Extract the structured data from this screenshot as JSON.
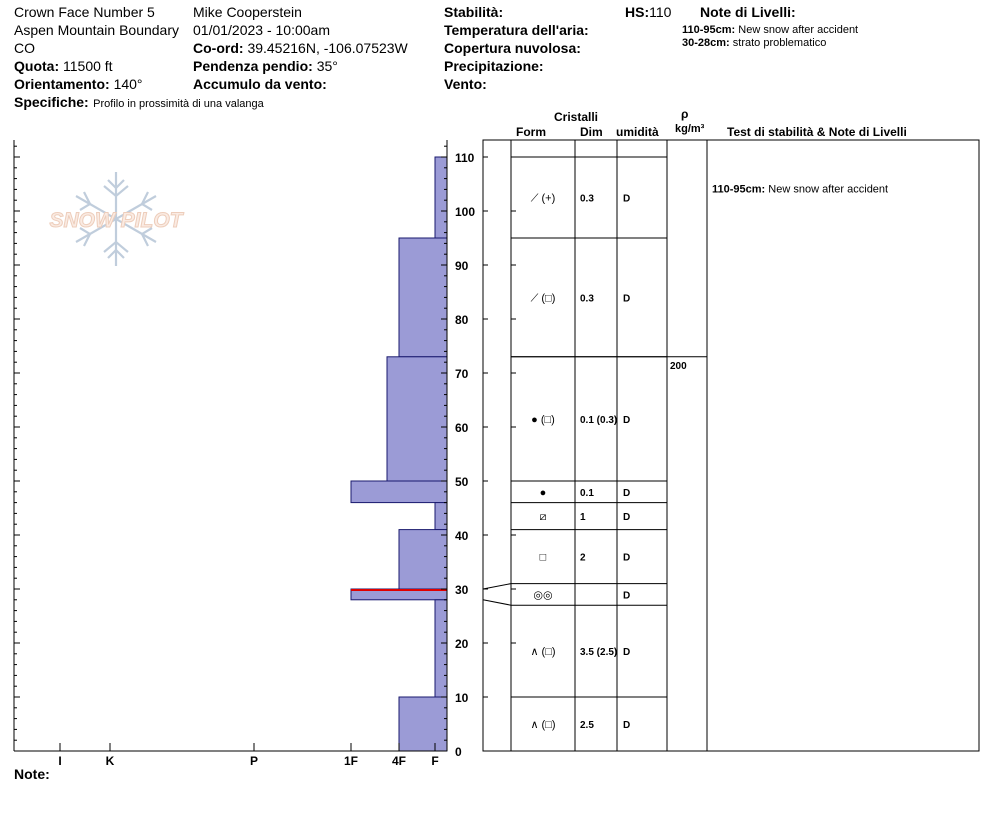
{
  "header": {
    "site": "Crown Face Number 5",
    "location": "Aspen Mountain Boundary",
    "state": "CO",
    "elevation_label": "Quota:",
    "elevation_value": "11500 ft",
    "aspect_label": "Orientamento:",
    "aspect_value": "140°",
    "specifics_label": "Specifiche:",
    "specifics_value": "Profilo in prossimità di una valanga",
    "observer": "Mike Cooperstein",
    "datetime": "01/01/2023 - 10:00am",
    "coord_label": "Co-ord:",
    "coord_value": "39.45216N, -106.07523W",
    "slope_label": "Pendenza pendio:",
    "slope_value": "35°",
    "wind_loading_label": "Accumulo da vento:",
    "stability_label": "Stabilità:",
    "air_temp_label": "Temperatura dell'aria:",
    "cloud_label": "Copertura nuvolosa:",
    "precip_label": "Precipitazione:",
    "wind_label": "Vento:",
    "hs_label": "HS:",
    "hs_value": "110",
    "layer_notes_title": "Note di Livelli:",
    "layer_notes": [
      {
        "range": "110-95cm:",
        "text": "New snow after accident"
      },
      {
        "range": "30-28cm:",
        "text": "strato problematico"
      }
    ]
  },
  "logo_text": "SNOW PILOT",
  "columns": {
    "crystals": "Cristalli",
    "form": "Form",
    "dim": "Dim",
    "moisture": "umidità",
    "rho": "ρ",
    "density_unit": "kg/m³",
    "tests": "Test di stabilità & Note di Livelli"
  },
  "note_label": "Note:",
  "chart_data": {
    "type": "bar",
    "orientation": "horizontal step profile",
    "y_axis": {
      "label": "",
      "unit": "cm",
      "range": [
        0,
        113
      ],
      "ticks": [
        0,
        10,
        20,
        30,
        40,
        50,
        60,
        70,
        80,
        90,
        100,
        110
      ]
    },
    "x_axis": {
      "label": "",
      "ticks": [
        "I",
        "K",
        "P",
        "1F",
        "4F",
        "F"
      ]
    },
    "hardness_profile": [
      {
        "from": 110,
        "to": 95,
        "hardness": "F"
      },
      {
        "from": 95,
        "to": 73,
        "hardness": "4F"
      },
      {
        "from": 73,
        "to": 50,
        "hardness": "4F+"
      },
      {
        "from": 50,
        "to": 46,
        "hardness": "1F"
      },
      {
        "from": 46,
        "to": 41,
        "hardness": "F"
      },
      {
        "from": 41,
        "to": 30,
        "hardness": "4F"
      },
      {
        "from": 30,
        "to": 28,
        "hardness": "1F"
      },
      {
        "from": 28,
        "to": 10,
        "hardness": "F"
      },
      {
        "from": 10,
        "to": 0,
        "hardness": "4F"
      }
    ],
    "problem_layer": {
      "from": 30,
      "to": 28
    },
    "layers": [
      {
        "from": 110,
        "to": 95,
        "form": "⟋ (+)",
        "dim": "0.3",
        "moisture": "D",
        "density": "",
        "note_range": "110-95cm:",
        "note": "New snow after accident"
      },
      {
        "from": 95,
        "to": 73,
        "form": "⟋ (□)",
        "dim": "0.3",
        "moisture": "D",
        "density": "",
        "note_range": "",
        "note": ""
      },
      {
        "from": 73,
        "to": 50,
        "form": "● (□)",
        "dim": "0.1 (0.3)",
        "moisture": "D",
        "density": "200",
        "note_range": "",
        "note": ""
      },
      {
        "from": 50,
        "to": 46,
        "form": "●",
        "dim": "0.1",
        "moisture": "D",
        "density": "",
        "note_range": "",
        "note": ""
      },
      {
        "from": 46,
        "to": 41,
        "form": "⧄",
        "dim": "1",
        "moisture": "D",
        "density": "",
        "note_range": "",
        "note": ""
      },
      {
        "from": 41,
        "to": 31,
        "form": "□",
        "dim": "2",
        "moisture": "D",
        "density": "",
        "note_range": "",
        "note": ""
      },
      {
        "from": 31,
        "to": 27,
        "form": "◎◎",
        "dim": "",
        "moisture": "D",
        "density": "",
        "note_range": "",
        "note": ""
      },
      {
        "from": 27,
        "to": 10,
        "form": "∧ (□)",
        "dim": "3.5 (2.5)",
        "moisture": "D",
        "density": "",
        "note_range": "",
        "note": ""
      },
      {
        "from": 10,
        "to": 0,
        "form": "∧ (□)",
        "dim": "2.5",
        "moisture": "D",
        "density": "",
        "note_range": "",
        "note": ""
      }
    ],
    "colors": {
      "bar_fill": "#9b9bd6",
      "problem_line": "#e00000"
    }
  }
}
